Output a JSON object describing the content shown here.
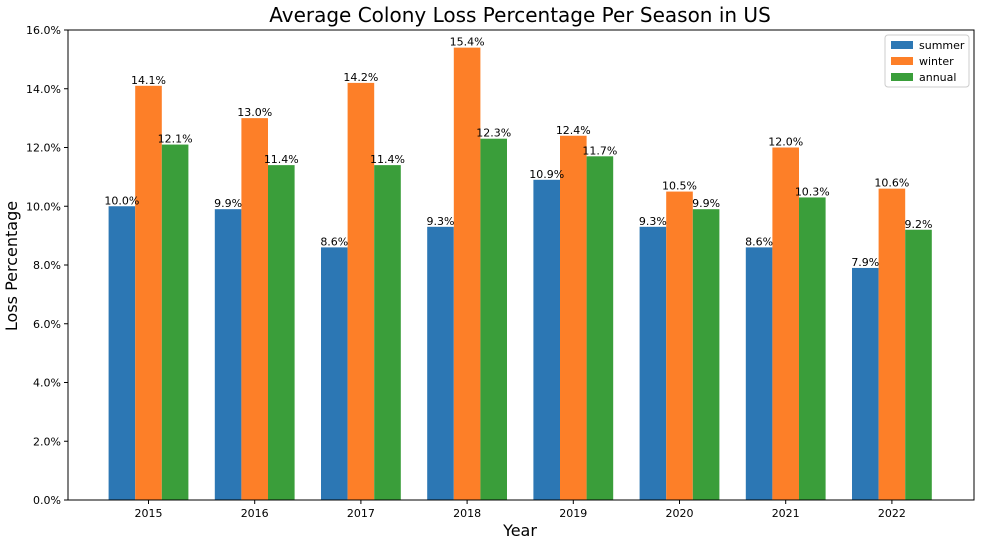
{
  "chart_data": {
    "type": "bar",
    "title": "Average Colony Loss Percentage Per Season in US",
    "xlabel": "Year",
    "ylabel": "Loss Percentage",
    "categories": [
      "2015",
      "2016",
      "2017",
      "2018",
      "2019",
      "2020",
      "2021",
      "2022"
    ],
    "series": [
      {
        "name": "summer",
        "color": "#2c77b4",
        "values": [
          10.0,
          9.9,
          8.6,
          9.3,
          10.9,
          9.3,
          8.6,
          7.9
        ],
        "labels": [
          "10.0%",
          "9.9%",
          "8.6%",
          "9.3%",
          "10.9%",
          "9.3%",
          "8.6%",
          "7.9%"
        ]
      },
      {
        "name": "winter",
        "color": "#fd7f28",
        "values": [
          14.1,
          13.0,
          14.2,
          15.4,
          12.4,
          10.5,
          12.0,
          10.6
        ],
        "labels": [
          "14.1%",
          "13.0%",
          "14.2%",
          "15.4%",
          "12.4%",
          "10.5%",
          "12.0%",
          "10.6%"
        ]
      },
      {
        "name": "annual",
        "color": "#3a9e3a",
        "values": [
          12.1,
          11.4,
          11.4,
          12.3,
          11.7,
          9.9,
          10.3,
          9.2
        ],
        "labels": [
          "12.1%",
          "11.4%",
          "11.4%",
          "12.3%",
          "11.7%",
          "9.9%",
          "10.3%",
          "9.2%"
        ]
      }
    ],
    "ylim": [
      0,
      16
    ],
    "yticks": [
      0,
      2,
      4,
      6,
      8,
      10,
      12,
      14,
      16
    ],
    "ytick_labels": [
      "0.0%",
      "2.0%",
      "4.0%",
      "6.0%",
      "8.0%",
      "10.0%",
      "12.0%",
      "14.0%",
      "16.0%"
    ],
    "grid": false,
    "legend_position": "top-right"
  }
}
